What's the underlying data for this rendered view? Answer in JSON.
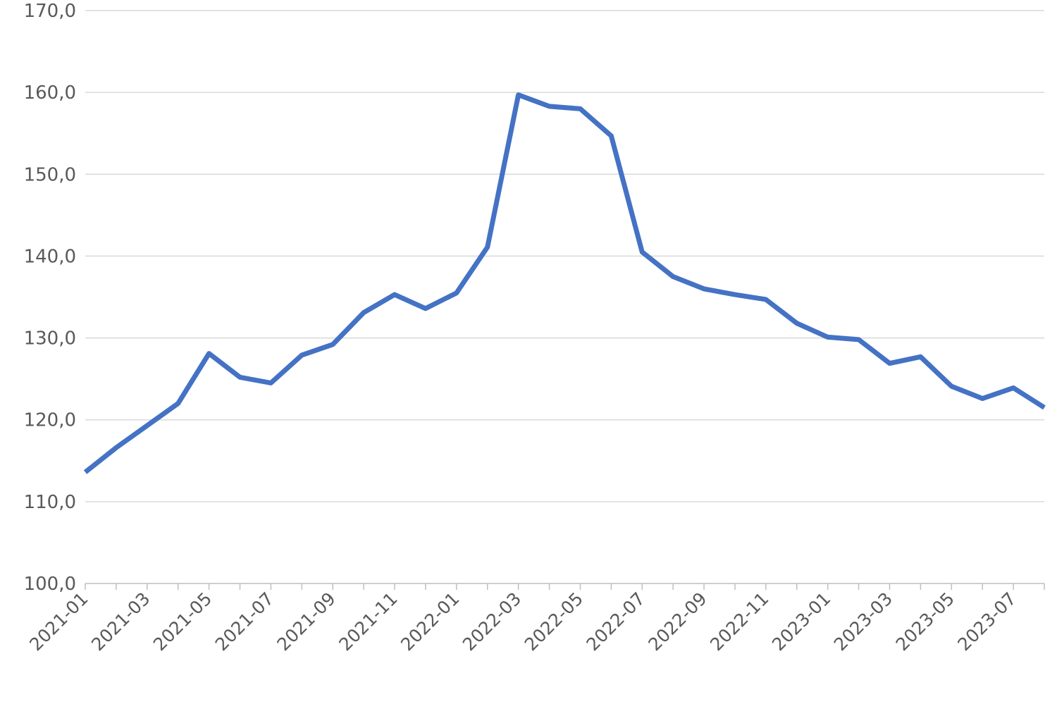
{
  "chart_data": {
    "type": "line",
    "title": "",
    "xlabel": "",
    "ylabel": "",
    "ylim": [
      100,
      170
    ],
    "ytick_step": 10,
    "ytick_labels": [
      "100,0",
      "110,0",
      "120,0",
      "130,0",
      "140,0",
      "150,0",
      "160,0",
      "170,0"
    ],
    "grid": true,
    "legend": "none",
    "x": [
      "2021-01",
      "2021-02",
      "2021-03",
      "2021-04",
      "2021-05",
      "2021-06",
      "2021-07",
      "2021-08",
      "2021-09",
      "2021-10",
      "2021-11",
      "2021-12",
      "2022-01",
      "2022-02",
      "2022-03",
      "2022-04",
      "2022-05",
      "2022-06",
      "2022-07",
      "2022-08",
      "2022-09",
      "2022-10",
      "2022-11",
      "2022-12",
      "2023-01",
      "2023-02",
      "2023-03",
      "2023-04",
      "2023-05",
      "2023-06",
      "2023-07",
      "2023-08"
    ],
    "xtick_labels": [
      "2021-01",
      "2021-03",
      "2021-05",
      "2021-07",
      "2021-09",
      "2021-11",
      "2022-01",
      "2022-03",
      "2022-05",
      "2022-07",
      "2022-09",
      "2022-11",
      "2023-01",
      "2023-03",
      "2023-05",
      "2023-07"
    ],
    "series": [
      {
        "color": "#4472c4",
        "values": [
          113.6,
          116.6,
          119.3,
          122.0,
          128.1,
          125.2,
          124.5,
          127.9,
          129.2,
          133.1,
          135.3,
          133.6,
          135.5,
          141.1,
          159.7,
          158.3,
          158.0,
          154.7,
          140.5,
          137.5,
          136.0,
          135.3,
          134.7,
          131.8,
          130.1,
          129.8,
          126.9,
          127.7,
          124.1,
          122.6,
          123.9,
          121.5
        ]
      }
    ]
  }
}
